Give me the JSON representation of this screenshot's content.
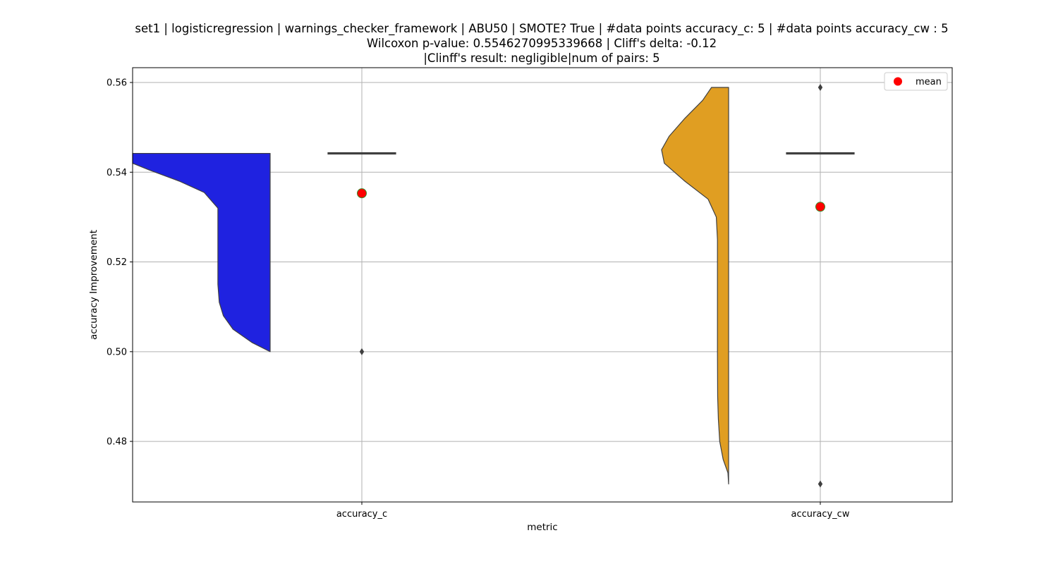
{
  "chart_data": {
    "type": "violin",
    "title_lines": [
      "set1 | logisticregression | warnings_checker_framework | ABU50 | SMOTE? True | #data points accuracy_c: 5 | #data points accuracy_cw : 5",
      "Wilcoxon p-value: 0.5546270995339668 | Cliff's delta: -0.12",
      "|Clinff's result: negligible|num of pairs: 5"
    ],
    "xlabel": "metric",
    "ylabel": "accuracy Improvement",
    "ylim": [
      0.4665,
      0.5633
    ],
    "yticks": [
      0.48,
      0.5,
      0.52,
      0.54,
      0.56
    ],
    "ytick_labels": [
      "0.48",
      "0.50",
      "0.52",
      "0.54",
      "0.56"
    ],
    "grid": true,
    "legend": {
      "position": "top-right",
      "entries": [
        {
          "label": "mean",
          "color": "#ff0000"
        }
      ]
    },
    "categories": [
      "accuracy_c",
      "accuracy_cw"
    ],
    "series": [
      {
        "category": "accuracy_c",
        "color": "#1f22e0",
        "range": [
          0.5,
          0.5442
        ],
        "density": [
          [
            0.5,
            0.0
          ],
          [
            0.502,
            0.13
          ],
          [
            0.505,
            0.27
          ],
          [
            0.508,
            0.34
          ],
          [
            0.511,
            0.37
          ],
          [
            0.515,
            0.38
          ],
          [
            0.525,
            0.38
          ],
          [
            0.532,
            0.38
          ],
          [
            0.5355,
            0.48
          ],
          [
            0.538,
            0.66
          ],
          [
            0.5405,
            0.88
          ],
          [
            0.542,
            1.0
          ],
          [
            0.5442,
            1.0
          ]
        ],
        "box": {
          "q1": 0.5442,
          "median": 0.5442,
          "q3": 0.5442,
          "whisker_low": 0.5442,
          "whisker_high": 0.5442
        },
        "outliers": [
          0.5
        ],
        "mean": 0.5353
      },
      {
        "category": "accuracy_cw",
        "color": "#e09e22",
        "range": [
          0.4705,
          0.5589
        ],
        "density": [
          [
            0.4705,
            0.0
          ],
          [
            0.473,
            0.01
          ],
          [
            0.476,
            0.08
          ],
          [
            0.48,
            0.13
          ],
          [
            0.485,
            0.15
          ],
          [
            0.49,
            0.16
          ],
          [
            0.5,
            0.163
          ],
          [
            0.51,
            0.163
          ],
          [
            0.52,
            0.163
          ],
          [
            0.525,
            0.163
          ],
          [
            0.53,
            0.18
          ],
          [
            0.534,
            0.3
          ],
          [
            0.538,
            0.64
          ],
          [
            0.542,
            0.94
          ],
          [
            0.545,
            0.98
          ],
          [
            0.548,
            0.87
          ],
          [
            0.552,
            0.64
          ],
          [
            0.556,
            0.38
          ],
          [
            0.5589,
            0.25
          ]
        ],
        "box": {
          "q1": 0.5442,
          "median": 0.5442,
          "q3": 0.5442,
          "whisker_low": 0.5442,
          "whisker_high": 0.5442
        },
        "outliers": [
          0.4705,
          0.5589
        ],
        "mean": 0.5323
      }
    ]
  }
}
